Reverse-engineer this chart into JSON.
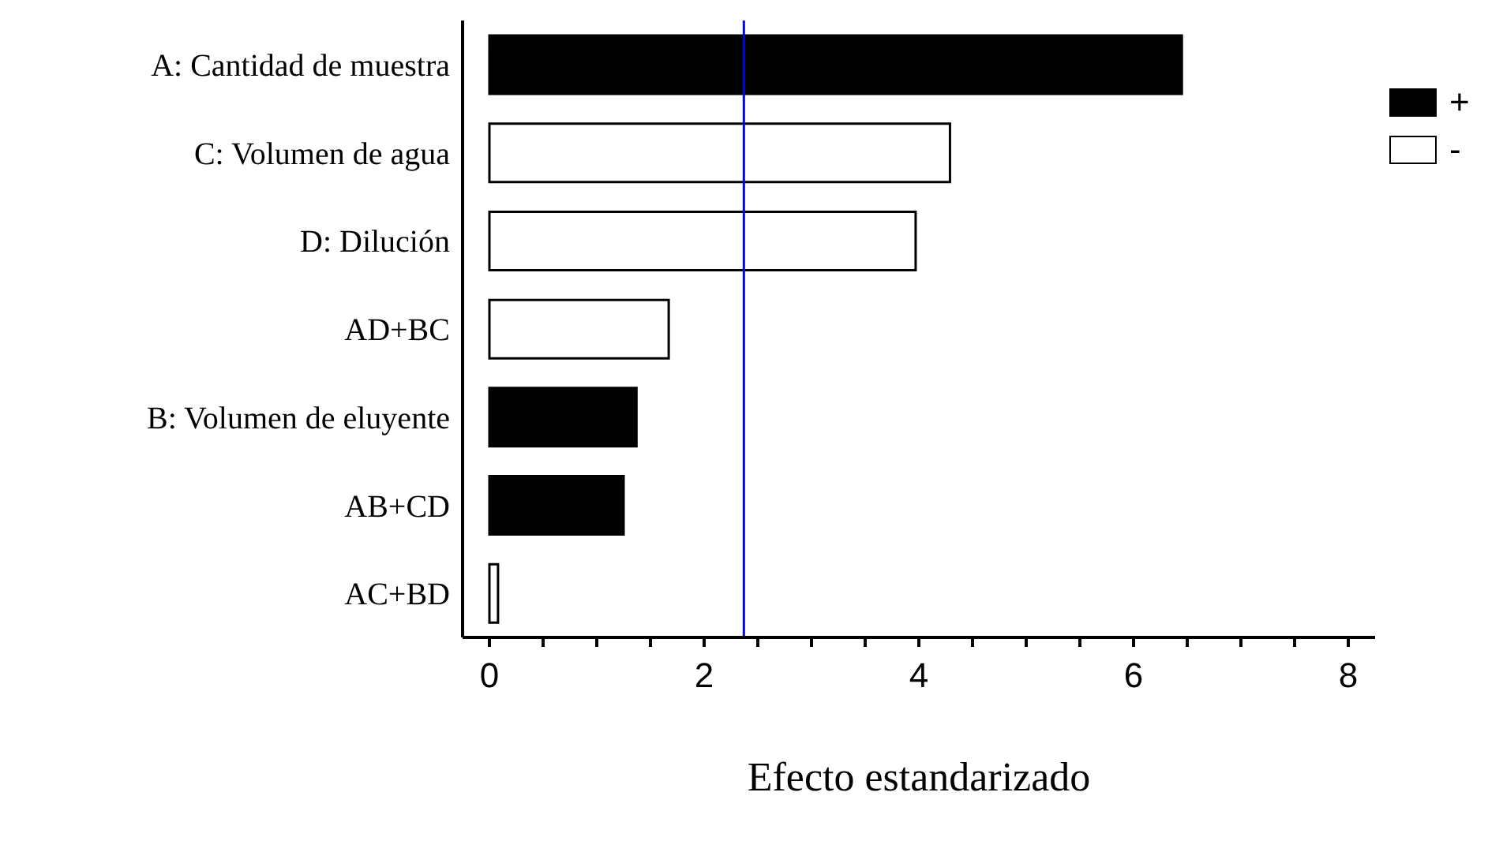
{
  "chart_data": {
    "type": "bar",
    "orientation": "horizontal",
    "stacked": true,
    "xlabel": "Efecto estandarizado",
    "categories": [
      "A: Cantidad de muestra",
      "C: Volumen de agua",
      "D: Dilución",
      "AD+BC",
      "B: Volumen de eluyente",
      "AB+CD",
      "AC+BD"
    ],
    "series": [
      {
        "name": "+",
        "color": "#000000",
        "values": [
          6.45,
          null,
          null,
          null,
          1.37,
          1.25,
          null
        ]
      },
      {
        "name": "-",
        "color": "#ffffff",
        "values": [
          null,
          4.29,
          3.97,
          1.67,
          null,
          null,
          0.08
        ]
      }
    ],
    "xlim": [
      -0.25,
      8.25
    ],
    "xticks": [
      0,
      {
        "value": 0.5,
        "label": null
      },
      {
        "value": 1,
        "label": null
      },
      {
        "value": 1.5,
        "label": null
      },
      2,
      {
        "value": 2.5,
        "label": null
      },
      {
        "value": 3,
        "label": null
      },
      {
        "value": 3.5,
        "label": null
      },
      4,
      {
        "value": 4.5,
        "label": null
      },
      {
        "value": 5,
        "label": null
      },
      {
        "value": 5.5,
        "label": null
      },
      6,
      {
        "value": 6.5,
        "label": null
      },
      {
        "value": 7,
        "label": null
      },
      {
        "value": 7.5,
        "label": null
      },
      8
    ],
    "ref_lines": [
      {
        "axis": "x",
        "value": 2.37,
        "color": "#0000ff"
      }
    ],
    "grid": false,
    "legend": "top right"
  }
}
